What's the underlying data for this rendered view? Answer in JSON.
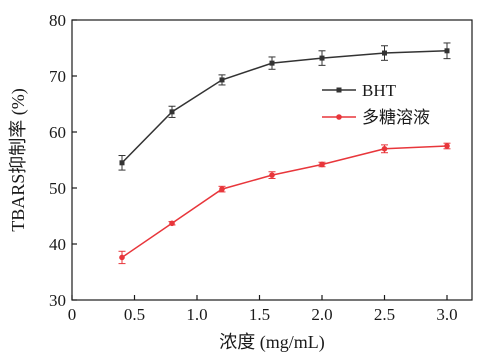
{
  "chart_data": {
    "type": "line",
    "xlabel": "浓度 (mg/mL)",
    "ylabel": "TBARS抑制率 (%)",
    "xlim": [
      0,
      3.2
    ],
    "ylim": [
      30,
      80
    ],
    "xticks": [
      "0",
      "0.5",
      "1.0",
      "1.5",
      "2.0",
      "2.5",
      "3.0"
    ],
    "xtick_values": [
      0,
      0.5,
      1.0,
      1.5,
      2.0,
      2.5,
      3.0
    ],
    "yticks": [
      "30",
      "40",
      "50",
      "60",
      "70",
      "80"
    ],
    "ytick_values": [
      30,
      40,
      50,
      60,
      70,
      80
    ],
    "grid": false,
    "legend_position": "right-center",
    "series": [
      {
        "name": "BHT",
        "color": "#333333",
        "marker": "square",
        "x": [
          0.4,
          0.8,
          1.2,
          1.6,
          2.0,
          2.5,
          3.0
        ],
        "y": [
          54.5,
          63.6,
          69.3,
          72.3,
          73.2,
          74.1,
          74.5
        ],
        "err": [
          1.3,
          1.0,
          0.9,
          1.1,
          1.3,
          1.3,
          1.4
        ]
      },
      {
        "name": "多糖溶液",
        "color": "#e8363b",
        "marker": "circle",
        "x": [
          0.4,
          0.8,
          1.2,
          1.6,
          2.0,
          2.5,
          3.0
        ],
        "y": [
          37.6,
          43.7,
          49.8,
          52.3,
          54.2,
          57.0,
          57.5
        ],
        "err": [
          1.1,
          0.3,
          0.5,
          0.6,
          0.4,
          0.7,
          0.5
        ]
      }
    ]
  }
}
